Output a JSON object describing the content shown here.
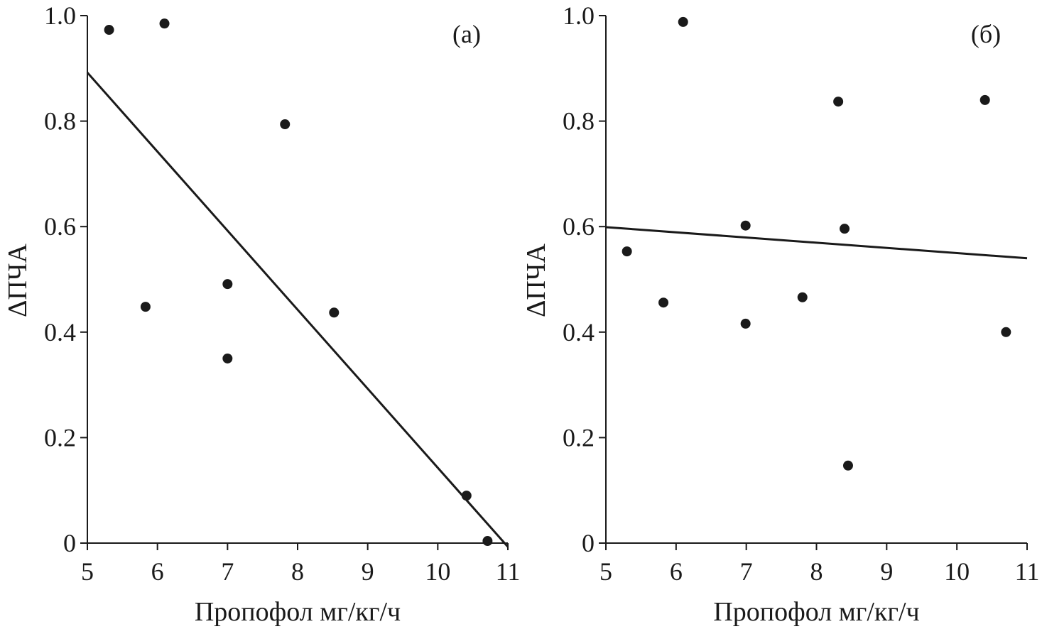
{
  "chart_data": [
    {
      "type": "scatter",
      "panel_label": "(а)",
      "xlabel": "Пропофол мг/кг/ч",
      "ylabel": "ΔПЧА",
      "xlim": [
        5,
        11
      ],
      "ylim": [
        0,
        1.0
      ],
      "xticks": [
        "5",
        "6",
        "7",
        "8",
        "9",
        "10",
        "11"
      ],
      "yticks": [
        "0",
        "0.2",
        "0.4",
        "0.6",
        "0.8",
        "1.0"
      ],
      "grid": false,
      "points": [
        {
          "x": 5.31,
          "y": 0.973
        },
        {
          "x": 6.1,
          "y": 0.985
        },
        {
          "x": 7.82,
          "y": 0.794
        },
        {
          "x": 5.83,
          "y": 0.448
        },
        {
          "x": 7.0,
          "y": 0.491
        },
        {
          "x": 7.0,
          "y": 0.35
        },
        {
          "x": 8.52,
          "y": 0.437
        },
        {
          "x": 10.41,
          "y": 0.09
        },
        {
          "x": 10.71,
          "y": 0.004
        }
      ],
      "trendline": {
        "x": [
          5,
          11
        ],
        "y": [
          0.892,
          -0.007
        ]
      }
    },
    {
      "type": "scatter",
      "panel_label": "(б)",
      "xlabel": "Пропофол мг/кг/ч",
      "ylabel": "ΔПЧА",
      "xlim": [
        5,
        11
      ],
      "ylim": [
        0,
        1.0
      ],
      "xticks": [
        "5",
        "6",
        "7",
        "8",
        "9",
        "10",
        "11"
      ],
      "yticks": [
        "0",
        "0.2",
        "0.4",
        "0.6",
        "0.8",
        "1.0"
      ],
      "grid": false,
      "points": [
        {
          "x": 5.3,
          "y": 0.553
        },
        {
          "x": 5.82,
          "y": 0.456
        },
        {
          "x": 6.1,
          "y": 0.988
        },
        {
          "x": 6.99,
          "y": 0.602
        },
        {
          "x": 6.99,
          "y": 0.416
        },
        {
          "x": 7.8,
          "y": 0.466
        },
        {
          "x": 8.31,
          "y": 0.837
        },
        {
          "x": 8.4,
          "y": 0.596
        },
        {
          "x": 8.45,
          "y": 0.147
        },
        {
          "x": 10.4,
          "y": 0.84
        },
        {
          "x": 10.7,
          "y": 0.4
        }
      ],
      "trendline": {
        "x": [
          5,
          11
        ],
        "y": [
          0.599,
          0.54
        ]
      }
    }
  ],
  "colors": {
    "ink": "#1a1a1a",
    "background": "#ffffff"
  }
}
